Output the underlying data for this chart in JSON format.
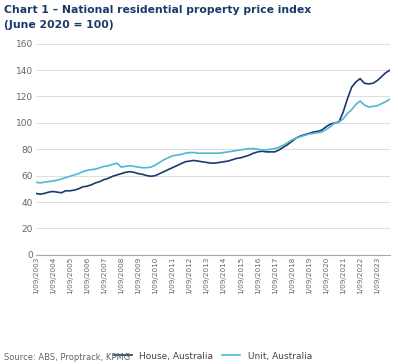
{
  "title_line1": "Chart 1 – National residential property price index",
  "title_line2": "(June 2020 = 100)",
  "source": "Source: ABS, Proptrack, KPMG",
  "legend": [
    "House, Australia",
    "Unit, Australia"
  ],
  "house_color": "#1a3a6b",
  "unit_color": "#4db8d4",
  "ylim": [
    0,
    160
  ],
  "yticks": [
    0,
    20,
    40,
    60,
    80,
    100,
    120,
    140,
    160
  ],
  "house_values": [
    46.5,
    46.0,
    46.5,
    47.5,
    48.0,
    47.5,
    47.0,
    48.5,
    48.5,
    49.0,
    50.0,
    51.5,
    52.0,
    53.0,
    54.5,
    55.5,
    57.0,
    58.0,
    59.5,
    60.5,
    61.5,
    62.5,
    63.0,
    62.5,
    61.5,
    61.0,
    60.0,
    59.5,
    60.0,
    61.5,
    63.0,
    64.5,
    66.0,
    67.5,
    69.0,
    70.5,
    71.0,
    71.5,
    71.0,
    70.5,
    70.0,
    69.5,
    69.5,
    70.0,
    70.5,
    71.0,
    72.0,
    73.0,
    73.5,
    74.5,
    75.5,
    77.0,
    78.0,
    78.5,
    78.0,
    78.0,
    78.0,
    79.5,
    81.5,
    83.5,
    86.0,
    88.5,
    90.0,
    91.0,
    92.0,
    93.0,
    93.5,
    94.5,
    97.0,
    99.0,
    100.0,
    100.5,
    108.0,
    118.0,
    127.0,
    131.0,
    133.5,
    130.0,
    129.5,
    130.0,
    132.0,
    135.0,
    138.0,
    140.0
  ],
  "unit_values": [
    55.0,
    54.5,
    55.0,
    55.5,
    56.0,
    56.5,
    57.5,
    58.5,
    59.5,
    60.5,
    61.5,
    63.0,
    64.0,
    64.5,
    65.0,
    66.0,
    67.0,
    67.5,
    68.5,
    69.5,
    66.5,
    67.0,
    67.5,
    67.0,
    66.5,
    66.0,
    66.0,
    66.5,
    68.0,
    70.0,
    72.0,
    73.5,
    75.0,
    75.5,
    76.0,
    77.0,
    77.5,
    77.5,
    77.0,
    77.0,
    77.0,
    77.0,
    77.0,
    77.0,
    77.5,
    78.0,
    78.5,
    79.0,
    79.5,
    80.0,
    80.5,
    80.5,
    80.0,
    79.5,
    79.5,
    80.0,
    80.5,
    81.5,
    83.0,
    85.0,
    87.0,
    88.5,
    89.5,
    90.5,
    91.5,
    92.0,
    92.5,
    93.0,
    95.0,
    97.0,
    100.0,
    100.5,
    103.0,
    107.0,
    110.0,
    114.0,
    116.5,
    113.5,
    112.0,
    112.5,
    113.0,
    114.5,
    116.0,
    118.0
  ],
  "xtick_labels": [
    "1/09/2003",
    "1/09/2004",
    "1/09/2005",
    "1/09/2006",
    "1/09/2007",
    "1/09/2008",
    "1/09/2009",
    "1/09/2010",
    "1/09/2011",
    "1/09/2012",
    "1/09/2013",
    "1/09/2014",
    "1/09/2015",
    "1/09/2016",
    "1/09/2017",
    "1/09/2018",
    "1/09/2019",
    "1/09/2020",
    "1/09/2021",
    "1/09/2022",
    "1/09/2023"
  ]
}
